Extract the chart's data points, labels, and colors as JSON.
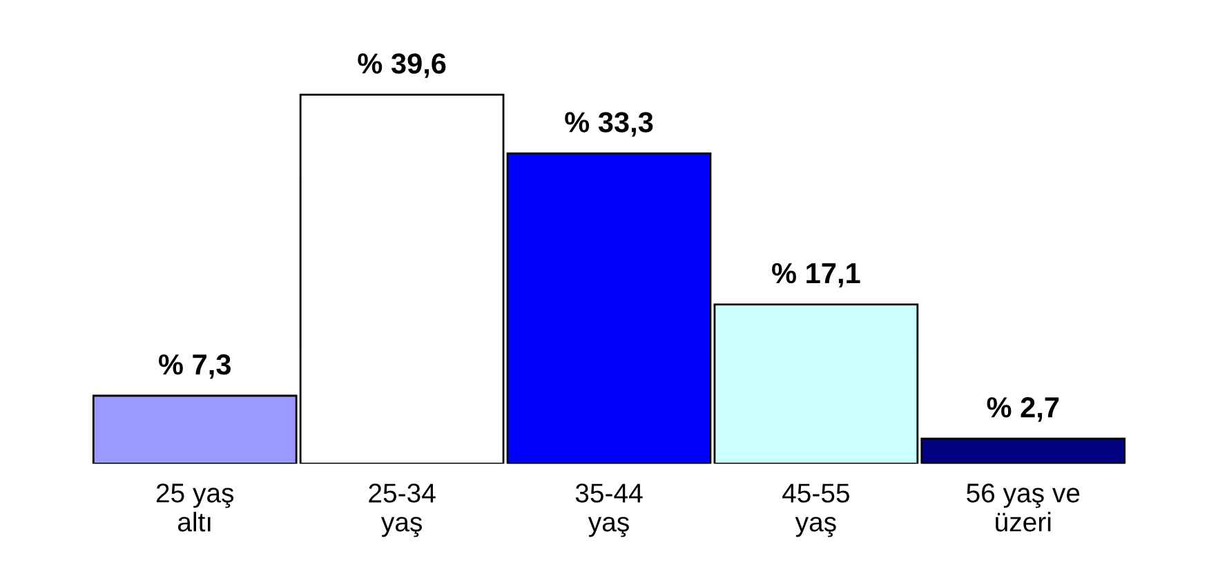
{
  "chart_data": {
    "type": "bar",
    "categories": [
      "25 yaş\naltı",
      "25-34\nyaş",
      "35-44\nyaş",
      "45-55\nyaş",
      "56 yaş ve\nüzeri"
    ],
    "values": [
      7.3,
      39.6,
      33.3,
      17.1,
      2.7
    ],
    "value_labels": [
      "% 7,3",
      "% 39,6",
      "% 33,3",
      "% 17,1",
      "% 2,7"
    ],
    "colors": [
      "#9999ff",
      "#ffffff",
      "#0000ff",
      "#ccffff",
      "#000080"
    ],
    "grid": false,
    "legend": false
  }
}
